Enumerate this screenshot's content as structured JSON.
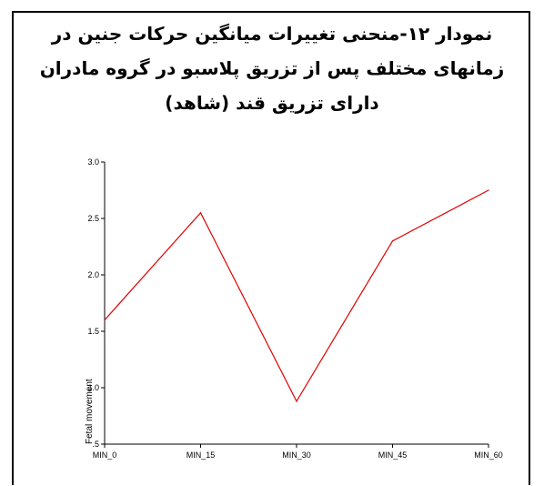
{
  "title_lines": [
    "نمودار ۱۲-منحنی تغییرات میانگین حرکات جنین در",
    "زمانهای مختلف پس از تزریق پلاسبو در گروه مادران",
    "دارای تزریق قند (شاهد)"
  ],
  "chart_data": {
    "type": "line",
    "title": "نمودار ۱۲-منحنی تغییرات میانگین حرکات جنین در زمانهای مختلف پس از تزریق پلاسبو در گروه مادران دارای تزریق قند (شاهد)",
    "categories": [
      "MIN_0",
      "MIN_15",
      "MIN_30",
      "MIN_45",
      "MIN_60"
    ],
    "series": [
      {
        "values": [
          1.6,
          2.55,
          0.88,
          2.3,
          2.75
        ],
        "color": "#e00000"
      }
    ],
    "xlabel": "",
    "ylabel": "Fetal movement",
    "ylim": [
      0.5,
      3.0
    ],
    "yticks": [
      0.5,
      1.0,
      1.5,
      2.0,
      2.5,
      3.0
    ],
    "ytick_labels": [
      ".5",
      "1.0",
      "1.5",
      "2.0",
      "2.5",
      "3.0"
    ],
    "grid": false
  }
}
